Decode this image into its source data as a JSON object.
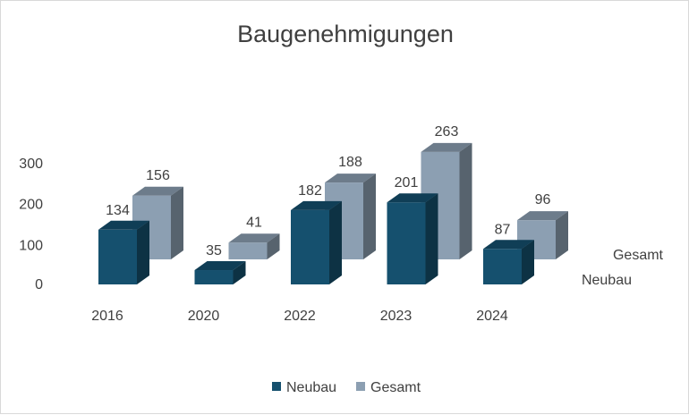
{
  "chart_data": {
    "type": "bar",
    "title": "Baugenehmigungen",
    "categories": [
      "2016",
      "2020",
      "2022",
      "2023",
      "2024"
    ],
    "series": [
      {
        "name": "Neubau",
        "values": [
          134,
          35,
          182,
          201,
          87
        ],
        "color": "#15506e"
      },
      {
        "name": "Gesamt",
        "values": [
          156,
          41,
          188,
          263,
          96
        ],
        "color": "#8c9fb2"
      }
    ],
    "y_ticks": [
      "0",
      "100",
      "200",
      "300"
    ],
    "ylim": [
      0,
      300
    ],
    "depth_labels": [
      "Gesamt",
      "Neubau"
    ],
    "legend": {
      "position": "bottom",
      "entries": [
        "Neubau",
        "Gesamt"
      ]
    },
    "grid": false,
    "style": "3d-column"
  }
}
